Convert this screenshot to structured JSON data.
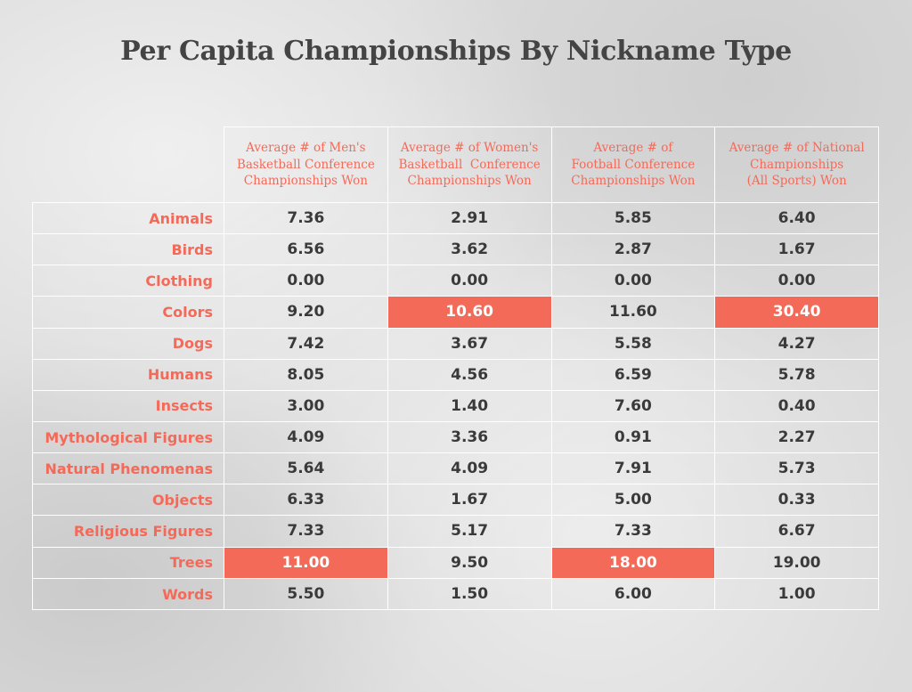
{
  "title": "Per Capita Championships By Nickname Type",
  "highlight_color": "#f46a59",
  "label_color": "#f46a59",
  "value_color": "#3a3a3a",
  "chart_data": {
    "type": "table",
    "title": "Per Capita Championships By Nickname Type",
    "columns": [
      [
        "Average # of Men's",
        "Basketball Conference",
        "Championships Won"
      ],
      [
        "Average # of Women's",
        "Basketball  Conference",
        "Championships Won"
      ],
      [
        "Average # of",
        "Football Conference",
        "Championships Won"
      ],
      [
        "Average # of National",
        "Championships",
        "(All Sports) Won"
      ]
    ],
    "rows": [
      {
        "label": "Animals",
        "values": [
          "7.36",
          "2.91",
          "5.85",
          "6.40"
        ],
        "highlight": [
          false,
          false,
          false,
          false
        ]
      },
      {
        "label": "Birds",
        "values": [
          "6.56",
          "3.62",
          "2.87",
          "1.67"
        ],
        "highlight": [
          false,
          false,
          false,
          false
        ]
      },
      {
        "label": "Clothing",
        "values": [
          "0.00",
          "0.00",
          "0.00",
          "0.00"
        ],
        "highlight": [
          false,
          false,
          false,
          false
        ]
      },
      {
        "label": "Colors",
        "values": [
          "9.20",
          "10.60",
          "11.60",
          "30.40"
        ],
        "highlight": [
          false,
          true,
          false,
          true
        ]
      },
      {
        "label": "Dogs",
        "values": [
          "7.42",
          "3.67",
          "5.58",
          "4.27"
        ],
        "highlight": [
          false,
          false,
          false,
          false
        ]
      },
      {
        "label": "Humans",
        "values": [
          "8.05",
          "4.56",
          "6.59",
          "5.78"
        ],
        "highlight": [
          false,
          false,
          false,
          false
        ]
      },
      {
        "label": "Insects",
        "values": [
          "3.00",
          "1.40",
          "7.60",
          "0.40"
        ],
        "highlight": [
          false,
          false,
          false,
          false
        ]
      },
      {
        "label": "Mythological Figures",
        "values": [
          "4.09",
          "3.36",
          "0.91",
          "2.27"
        ],
        "highlight": [
          false,
          false,
          false,
          false
        ]
      },
      {
        "label": "Natural Phenomenas",
        "values": [
          "5.64",
          "4.09",
          "7.91",
          "5.73"
        ],
        "highlight": [
          false,
          false,
          false,
          false
        ]
      },
      {
        "label": "Objects",
        "values": [
          "6.33",
          "1.67",
          "5.00",
          "0.33"
        ],
        "highlight": [
          false,
          false,
          false,
          false
        ]
      },
      {
        "label": "Religious Figures",
        "values": [
          "7.33",
          "5.17",
          "7.33",
          "6.67"
        ],
        "highlight": [
          false,
          false,
          false,
          false
        ]
      },
      {
        "label": "Trees",
        "values": [
          "11.00",
          "9.50",
          "18.00",
          "19.00"
        ],
        "highlight": [
          true,
          false,
          true,
          false
        ]
      },
      {
        "label": "Words",
        "values": [
          "5.50",
          "1.50",
          "6.00",
          "1.00"
        ],
        "highlight": [
          false,
          false,
          false,
          false
        ]
      }
    ]
  }
}
